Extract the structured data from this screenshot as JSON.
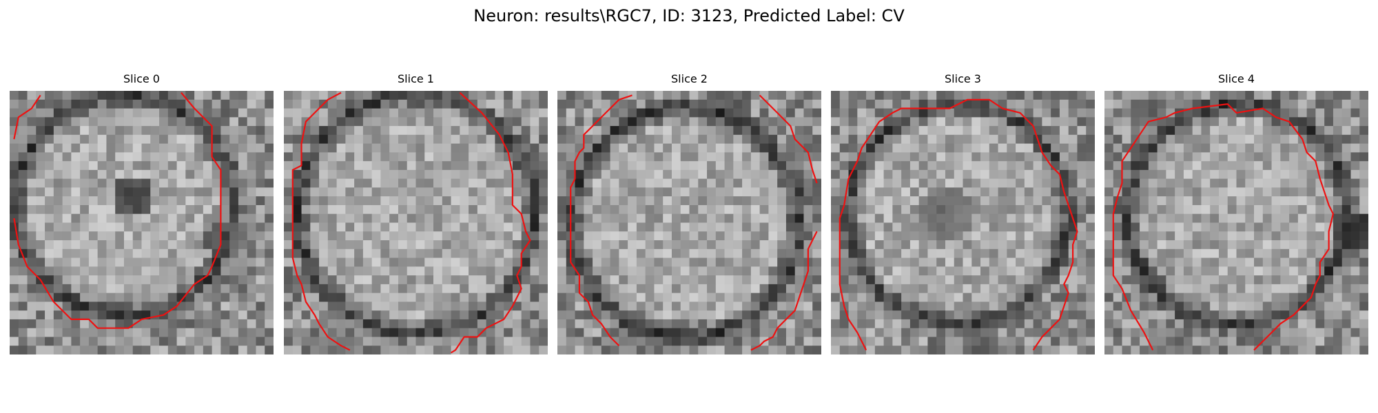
{
  "figure": {
    "title": "Neuron: results\\RGC7, ID: 3123, Predicted Label: CV",
    "contour_color": "#ee1111",
    "panels": [
      {
        "title": "Slice 0"
      },
      {
        "title": "Slice 1"
      },
      {
        "title": "Slice 2"
      },
      {
        "title": "Slice 3"
      },
      {
        "title": "Slice 4"
      }
    ]
  }
}
